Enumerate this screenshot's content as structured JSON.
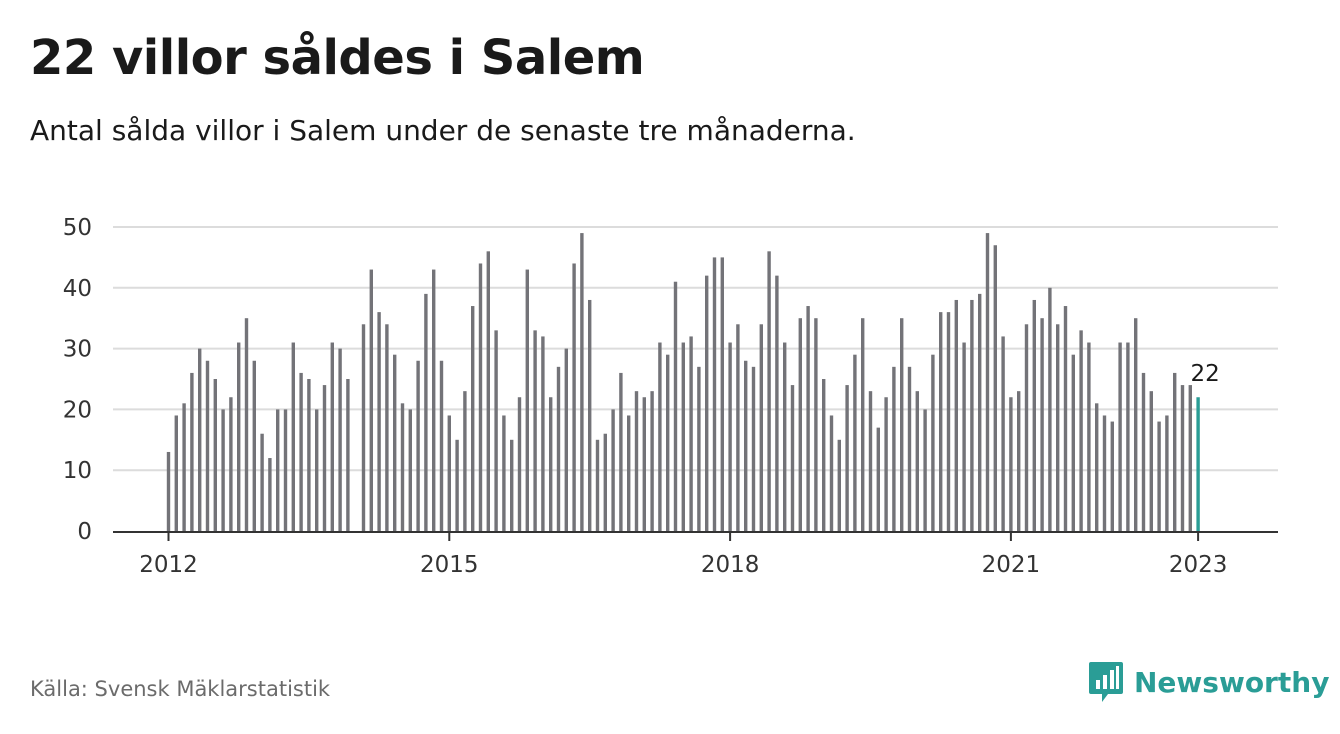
{
  "title": "22 villor såldes i Salem",
  "subtitle": "Antal sålda villor i Salem under de senaste tre månaderna.",
  "source": "Källa: Svensk Mäklarstatistik",
  "brand": {
    "name": "Newsworthy",
    "icon": "newsworthy-logo-icon",
    "color": "#2a9d96"
  },
  "colors": {
    "bar": "#737378",
    "highlight": "#2a9d96",
    "grid": "#dcdcdc",
    "axis": "#333333"
  },
  "chart_data": {
    "type": "bar",
    "x_axis_label": "",
    "y_axis_label": "",
    "ylim": [
      0,
      50
    ],
    "y_ticks": [
      0,
      10,
      20,
      30,
      40,
      50
    ],
    "x_tick_labels": [
      "2012",
      "2015",
      "2018",
      "2021",
      "2023"
    ],
    "grid": "horizontal",
    "start_period": "2012-01",
    "values": [
      13,
      19,
      21,
      26,
      30,
      28,
      25,
      20,
      22,
      31,
      35,
      28,
      16,
      12,
      20,
      20,
      31,
      26,
      25,
      20,
      24,
      31,
      30,
      25,
      null,
      34,
      43,
      36,
      34,
      29,
      21,
      20,
      28,
      39,
      43,
      28,
      19,
      15,
      23,
      37,
      44,
      46,
      33,
      19,
      15,
      22,
      43,
      33,
      32,
      22,
      27,
      30,
      44,
      49,
      38,
      15,
      16,
      20,
      26,
      19,
      23,
      22,
      23,
      31,
      29,
      41,
      31,
      32,
      27,
      42,
      45,
      45,
      31,
      34,
      28,
      27,
      34,
      46,
      42,
      31,
      24,
      35,
      37,
      35,
      25,
      19,
      15,
      24,
      29,
      35,
      23,
      17,
      22,
      27,
      35,
      27,
      23,
      20,
      29,
      36,
      36,
      38,
      31,
      38,
      39,
      49,
      47,
      32,
      22,
      23,
      34,
      38,
      35,
      40,
      34,
      37,
      29,
      33,
      31,
      21,
      19,
      18,
      31,
      31,
      35,
      26,
      23,
      18,
      19,
      26,
      24,
      24,
      22
    ],
    "highlight_last": true,
    "last_value_label": "22"
  }
}
